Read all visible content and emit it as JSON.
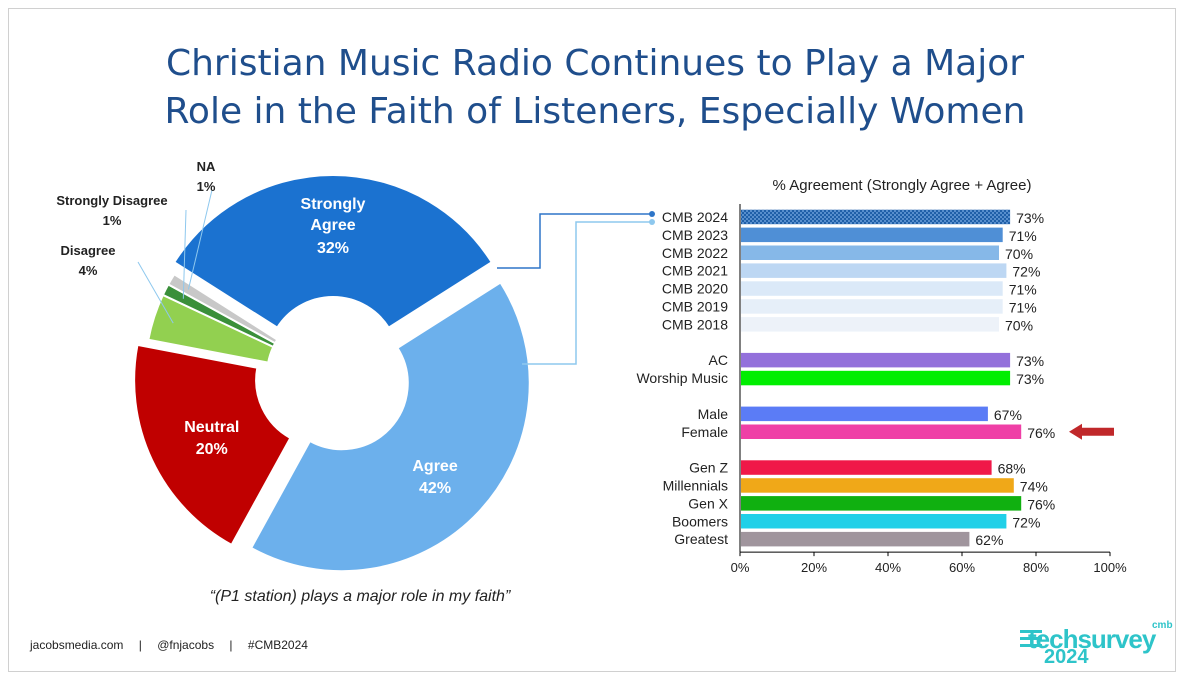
{
  "title_lines": [
    "Christian Music Radio Continues to Play a Major",
    "Role in the Faith of Listeners, Especially Women"
  ],
  "quote": "“(P1 station) plays a major role in my faith”",
  "footer": {
    "site": "jacobsmedia.com",
    "sep1": "|",
    "handle": "@fnjacobs",
    "sep2": "|",
    "hashtag": "#CMB2024"
  },
  "logo": {
    "brand": "techsurvey",
    "superscript": "cmb",
    "year": "2024"
  },
  "colors": {
    "title": "#1f4e8c"
  },
  "chart_data": [
    {
      "type": "pie",
      "donut": true,
      "title": "",
      "slices": [
        {
          "label": "Strongly Agree",
          "line1": "Strongly",
          "line2": "Agree",
          "value": 32,
          "value_label": "32%",
          "color": "#1b72d0",
          "exploded": true
        },
        {
          "label": "Agree",
          "value": 42,
          "value_label": "42%",
          "color": "#6cb0ec",
          "exploded": true
        },
        {
          "label": "Neutral",
          "value": 20,
          "value_label": "20%",
          "color": "#c00000",
          "exploded": true
        },
        {
          "label": "Disagree",
          "value": 4,
          "value_label": "4%",
          "color": "#92d050",
          "exploded": false
        },
        {
          "label": "Strongly Disagree",
          "value": 1,
          "value_label": "1%",
          "color": "#3a8f3a",
          "exploded": false
        },
        {
          "label": "NA",
          "value": 1,
          "value_label": "1%",
          "color": "#c8c8c8",
          "exploded": false
        }
      ]
    },
    {
      "type": "bar",
      "orientation": "horizontal",
      "title": "% Agreement (Strongly Agree + Agree)",
      "xlim": [
        0,
        100
      ],
      "x_ticks": [
        "0%",
        "20%",
        "40%",
        "60%",
        "80%",
        "100%"
      ],
      "groups": [
        [
          {
            "label": "CMB 2024",
            "value": 73,
            "value_label": "73%",
            "color": "#1f5fa8",
            "pattern": true
          },
          {
            "label": "CMB 2023",
            "value": 71,
            "value_label": "71%",
            "color": "#4f8fd6"
          },
          {
            "label": "CMB 2022",
            "value": 70,
            "value_label": "70%",
            "color": "#86b8e8"
          },
          {
            "label": "CMB 2021",
            "value": 72,
            "value_label": "72%",
            "color": "#bdd7f3"
          },
          {
            "label": "CMB 2020",
            "value": 71,
            "value_label": "71%",
            "color": "#dbe9f8"
          },
          {
            "label": "CMB 2019",
            "value": 71,
            "value_label": "71%",
            "color": "#e6eff9"
          },
          {
            "label": "CMB 2018",
            "value": 70,
            "value_label": "70%",
            "color": "#edf2f9"
          }
        ],
        [
          {
            "label": "AC",
            "value": 73,
            "value_label": "73%",
            "color": "#9370db"
          },
          {
            "label": "Worship Music",
            "value": 73,
            "value_label": "73%",
            "color": "#00ee00"
          }
        ],
        [
          {
            "label": "Male",
            "value": 67,
            "value_label": "67%",
            "color": "#5b7cf6"
          },
          {
            "label": "Female",
            "value": 76,
            "value_label": "76%",
            "color": "#ef3fa6",
            "highlight_arrow": true,
            "arrow_color": "#c0282a"
          }
        ],
        [
          {
            "label": "Gen Z",
            "value": 68,
            "value_label": "68%",
            "color": "#f01848"
          },
          {
            "label": "Millennials",
            "value": 74,
            "value_label": "74%",
            "color": "#f0a818"
          },
          {
            "label": "Gen X",
            "value": 76,
            "value_label": "76%",
            "color": "#10b010"
          },
          {
            "label": "Boomers",
            "value": 72,
            "value_label": "72%",
            "color": "#20d0e8"
          },
          {
            "label": "Greatest",
            "value": 62,
            "value_label": "62%",
            "color": "#a0959d"
          }
        ]
      ]
    }
  ]
}
